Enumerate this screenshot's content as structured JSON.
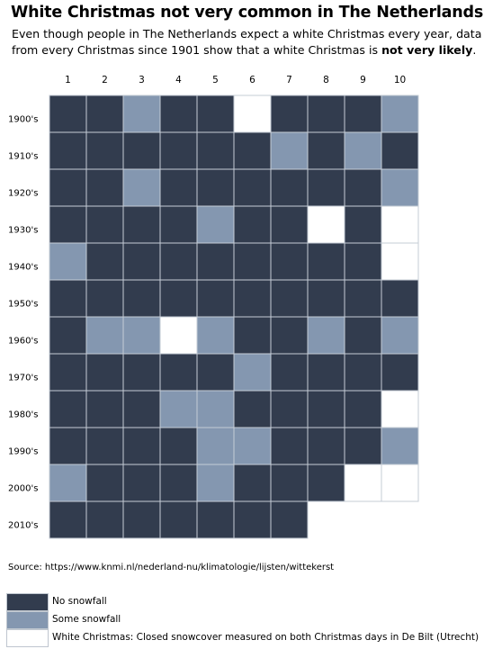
{
  "title": "White Christmas not very common in The Netherlands",
  "subtitle_parts": {
    "main": "Even though people in The Netherlands expect a white Christmas every year, data from every Christmas since 1901 show that a white Christmas is ",
    "emphasis": "not very likely",
    "end": "."
  },
  "source": "Source: https://www.knmi.nl/nederland-nu/klimatologie/lijsten/wittekerst",
  "colors": {
    "no_snowfall": "#323c4e",
    "some_snowfall": "#8497b0",
    "white_christmas": "#ffffff"
  },
  "legend": [
    {
      "key": "N",
      "label": "No snowfall"
    },
    {
      "key": "S",
      "label": "Some snowfall"
    },
    {
      "key": "W",
      "label": "White Christmas: Closed snowcover measured on both Christmas days in De Bilt (Utrecht)"
    }
  ],
  "chart_data": {
    "type": "heatmap",
    "title": "White Christmas not very common in The Netherlands",
    "columns": [
      "1",
      "2",
      "3",
      "4",
      "5",
      "6",
      "7",
      "8",
      "9",
      "10"
    ],
    "rows": [
      "1900's",
      "1910's",
      "1920's",
      "1930's",
      "1940's",
      "1950's",
      "1960's",
      "1970's",
      "1980's",
      "1990's",
      "2000's",
      "2010's"
    ],
    "categories": {
      "N": "No snowfall",
      "S": "Some snowfall",
      "W": "White Christmas"
    },
    "values": [
      [
        "N",
        "N",
        "S",
        "N",
        "N",
        "W",
        "N",
        "N",
        "N",
        "S"
      ],
      [
        "N",
        "N",
        "N",
        "N",
        "N",
        "N",
        "S",
        "N",
        "S",
        "N"
      ],
      [
        "N",
        "N",
        "S",
        "N",
        "N",
        "N",
        "N",
        "N",
        "N",
        "S"
      ],
      [
        "N",
        "N",
        "N",
        "N",
        "S",
        "N",
        "N",
        "W",
        "N",
        "W"
      ],
      [
        "S",
        "N",
        "N",
        "N",
        "N",
        "N",
        "N",
        "N",
        "N",
        "W"
      ],
      [
        "N",
        "N",
        "N",
        "N",
        "N",
        "N",
        "N",
        "N",
        "N",
        "N"
      ],
      [
        "N",
        "S",
        "S",
        "W",
        "S",
        "N",
        "N",
        "S",
        "N",
        "S"
      ],
      [
        "N",
        "N",
        "N",
        "N",
        "N",
        "S",
        "N",
        "N",
        "N",
        "N"
      ],
      [
        "N",
        "N",
        "N",
        "S",
        "S",
        "N",
        "N",
        "N",
        "N",
        "W"
      ],
      [
        "N",
        "N",
        "N",
        "N",
        "S",
        "S",
        "N",
        "N",
        "N",
        "S"
      ],
      [
        "S",
        "N",
        "N",
        "N",
        "S",
        "N",
        "N",
        "N",
        "W",
        "W"
      ],
      [
        "N",
        "N",
        "N",
        "N",
        "N",
        "N",
        "N"
      ]
    ]
  }
}
